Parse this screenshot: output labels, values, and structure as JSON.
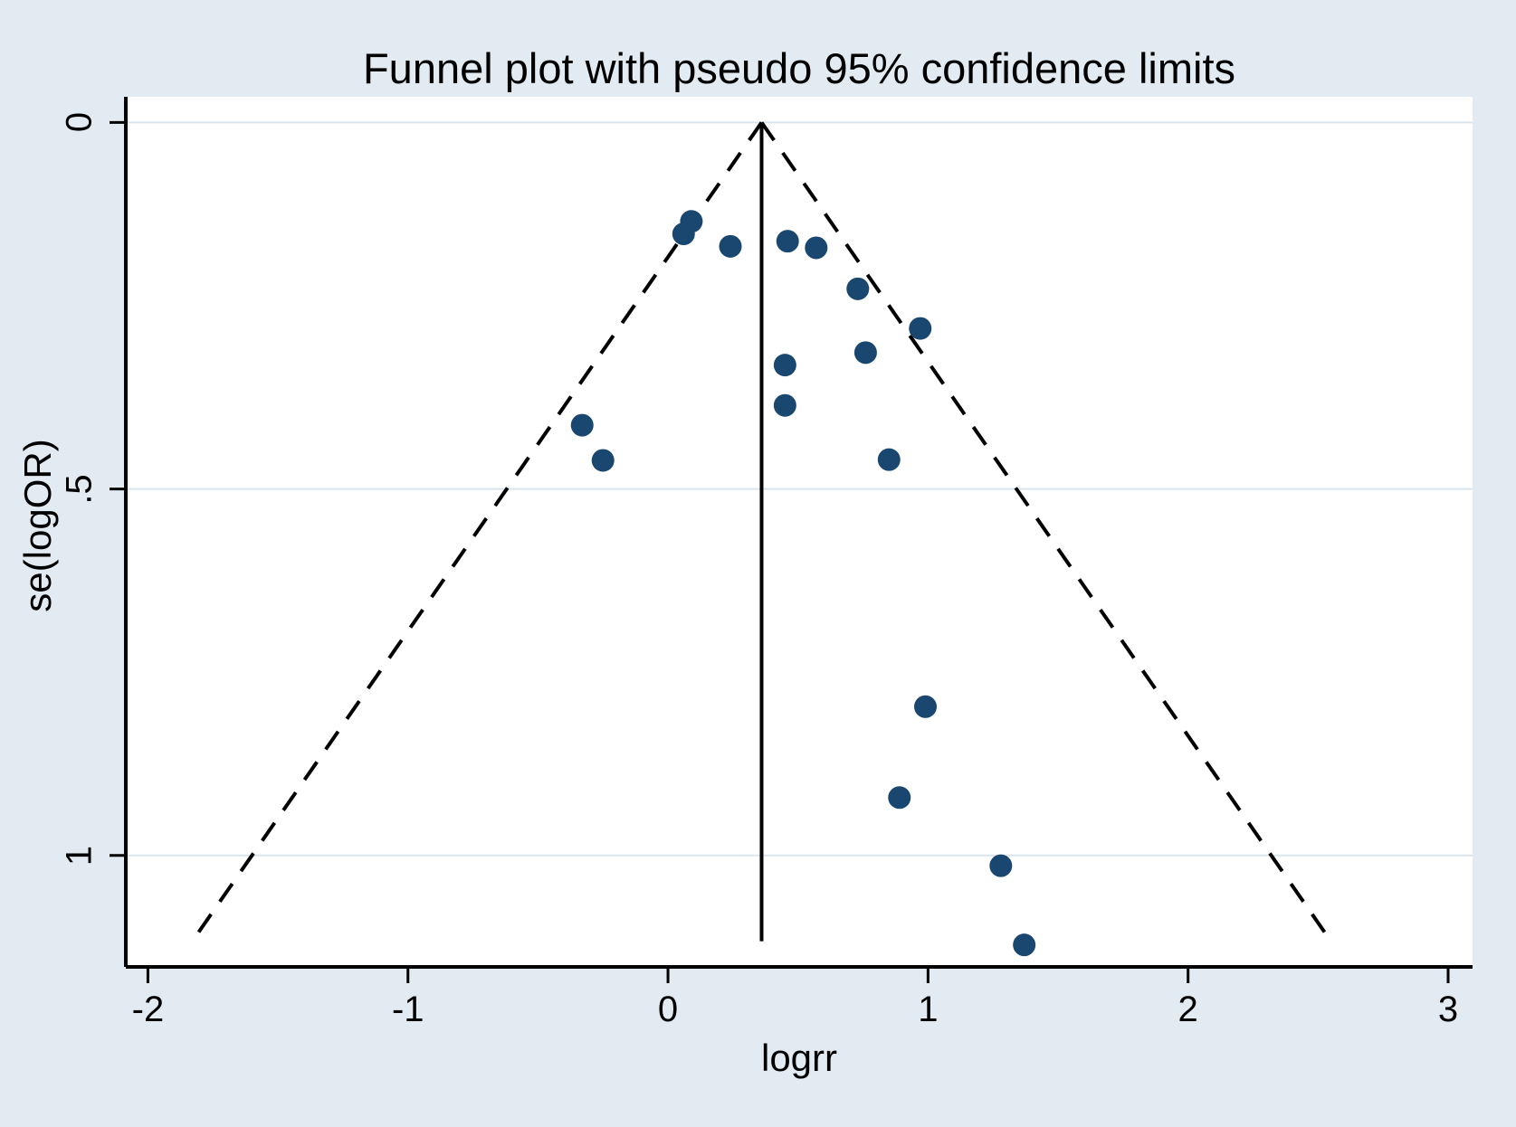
{
  "colors": {
    "background": "#e2ebf1",
    "plot_background": "#ffffff",
    "marker": "#1a476f",
    "axis_line": "#000000",
    "grid_line": "#d9e5ee",
    "text": "#000000"
  },
  "chart_data": {
    "type": "scatter",
    "title": "Funnel plot with pseudo 95% confidence limits",
    "xlabel": "logrr",
    "ylabel": "se(logOR)",
    "xlim": [
      -2.085,
      3.094
    ],
    "ylim": [
      -0.035,
      1.152
    ],
    "y_axis_reversed": true,
    "grid": "horizontal-only",
    "x_ticks": [
      {
        "value": -2,
        "label": "-2"
      },
      {
        "value": -1,
        "label": "-1"
      },
      {
        "value": 0,
        "label": "0"
      },
      {
        "value": 1,
        "label": "1"
      },
      {
        "value": 2,
        "label": "2"
      },
      {
        "value": 3,
        "label": "3"
      }
    ],
    "y_ticks": [
      {
        "value": 0,
        "label": "0"
      },
      {
        "value": 0.5,
        "label": ".5"
      },
      {
        "value": 1,
        "label": "1"
      }
    ],
    "pooled_estimate_logrr": 0.36,
    "pseudo_ci_z": 1.96,
    "funnel_se_max": 1.117,
    "series": [
      {
        "name": "studies",
        "points": [
          {
            "logrr": 0.09,
            "se": 0.135
          },
          {
            "logrr": 0.06,
            "se": 0.152
          },
          {
            "logrr": 0.24,
            "se": 0.169
          },
          {
            "logrr": 0.46,
            "se": 0.162
          },
          {
            "logrr": 0.57,
            "se": 0.171
          },
          {
            "logrr": 0.73,
            "se": 0.227
          },
          {
            "logrr": 0.97,
            "se": 0.281
          },
          {
            "logrr": 0.76,
            "se": 0.314
          },
          {
            "logrr": 0.45,
            "se": 0.331
          },
          {
            "logrr": 0.45,
            "se": 0.386
          },
          {
            "logrr": -0.33,
            "se": 0.413
          },
          {
            "logrr": -0.25,
            "se": 0.461
          },
          {
            "logrr": 0.85,
            "se": 0.46
          },
          {
            "logrr": 0.99,
            "se": 0.797
          },
          {
            "logrr": 0.89,
            "se": 0.921
          },
          {
            "logrr": 1.28,
            "se": 1.014
          },
          {
            "logrr": 1.37,
            "se": 1.122
          }
        ]
      }
    ]
  }
}
